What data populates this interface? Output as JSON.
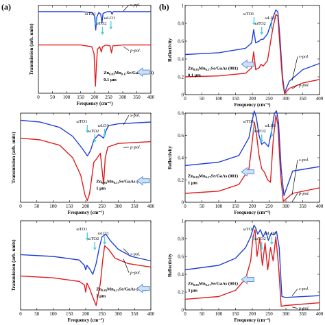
{
  "figure": {
    "panel_labels": [
      "(a)",
      "(b)"
    ],
    "colors": {
      "s_pol": "#1f3fd6",
      "p_pol": "#e01b1b",
      "arrow_cyan": "#4fd0e0",
      "block_arrow": "#5a8fd8"
    }
  },
  "chart_data": [
    {
      "id": "a1",
      "type": "line",
      "ylabel": "Transmission (arb. units)",
      "xlabel": "Frequency (cm⁻¹)",
      "xlim": [
        0,
        400
      ],
      "xticks": [
        0,
        50,
        100,
        150,
        200,
        250,
        300,
        350,
        400
      ],
      "legend": [
        "s-pol.",
        "p-pol."
      ],
      "annotations": {
        "o1": "ωTO1",
        "o2": "ωTO2",
        "o3": "ωLO1",
        "thickness": "0.1 μm",
        "sample": {
          "a": "Zn",
          "b": "0.83",
          "c": "Mn",
          "d": "0.17",
          "e": "Se/GaAs (001)"
        }
      },
      "series": [
        {
          "name": "s-pol.",
          "x": [
            0,
            150,
            190,
            200,
            204,
            208,
            215,
            222,
            226,
            230,
            245,
            258,
            262,
            266,
            300,
            400
          ],
          "y": [
            0.93,
            0.93,
            0.92,
            0.88,
            0.72,
            0.87,
            0.92,
            0.9,
            0.8,
            0.91,
            0.93,
            0.93,
            0.9,
            0.93,
            0.93,
            0.93
          ]
        },
        {
          "name": "p-pol.",
          "x": [
            0,
            150,
            190,
            198,
            203,
            206,
            210,
            218,
            224,
            228,
            240,
            255,
            260,
            265,
            300,
            400
          ],
          "y": [
            0.55,
            0.55,
            0.53,
            0.45,
            0.08,
            0.3,
            0.5,
            0.53,
            0.47,
            0.53,
            0.55,
            0.54,
            0.46,
            0.54,
            0.55,
            0.55
          ]
        }
      ]
    },
    {
      "id": "b1",
      "type": "line",
      "ylabel": "Reflectivity",
      "xlabel": "Frequency (cm⁻¹)",
      "xlim": [
        0,
        400
      ],
      "ylim": [
        0,
        1.0
      ],
      "xticks": [
        0,
        50,
        100,
        150,
        200,
        250,
        300,
        350,
        400
      ],
      "yticks": [
        0,
        0.2,
        0.4,
        0.6,
        0.8,
        1.0
      ],
      "legend": [
        "s-pol.",
        "p-pol."
      ],
      "annotations": {
        "o1": "ωTO1",
        "o2": "ωTO2",
        "o3": "ωLO1",
        "thickness": "0.1 μm",
        "sample": {
          "a": "Zn",
          "b": "0.83",
          "c": "Mn",
          "d": "0.17",
          "e": "Se/GaAs (001)"
        }
      },
      "series": [
        {
          "name": "s-pol.",
          "x": [
            0,
            100,
            180,
            198,
            204,
            210,
            220,
            226,
            232,
            245,
            260,
            270,
            276,
            282,
            290,
            296,
            310,
            350,
            400
          ],
          "y": [
            0.45,
            0.47,
            0.52,
            0.58,
            0.73,
            0.58,
            0.6,
            0.62,
            0.62,
            0.68,
            0.85,
            0.95,
            0.93,
            0.65,
            0.2,
            0.02,
            0.15,
            0.28,
            0.35
          ]
        },
        {
          "name": "p-pol.",
          "x": [
            0,
            100,
            180,
            198,
            204,
            210,
            220,
            226,
            232,
            245,
            260,
            270,
            276,
            282,
            290,
            296,
            310,
            350,
            400
          ],
          "y": [
            0.2,
            0.21,
            0.24,
            0.3,
            0.48,
            0.28,
            0.3,
            0.34,
            0.32,
            0.38,
            0.72,
            0.9,
            0.88,
            0.55,
            0.15,
            0.01,
            0.07,
            0.13,
            0.17
          ]
        }
      ]
    },
    {
      "id": "a2",
      "type": "line",
      "ylabel": "Transmission (arb. units)",
      "xlabel": "Frequency (cm⁻¹)",
      "xlim": [
        0,
        400
      ],
      "xticks": [
        0,
        50,
        100,
        150,
        200,
        250,
        300,
        350,
        400
      ],
      "legend": [
        "p-pol.",
        "s-pol."
      ],
      "annotations": {
        "o1": "ωTO1",
        "o2": "ωTO2",
        "o3": "ωLO1",
        "thickness": "1 μm",
        "sample": {
          "a": "Zn",
          "b": "0.83",
          "c": "Mn",
          "d": "0.17",
          "e": "Se/GaAs (001)"
        }
      },
      "series": [
        {
          "name": "s-pol.",
          "x": [
            0,
            60,
            120,
            160,
            190,
            205,
            215,
            225,
            230,
            240,
            255,
            262,
            270,
            300,
            400
          ],
          "y": [
            0.92,
            0.9,
            0.84,
            0.74,
            0.6,
            0.52,
            0.58,
            0.7,
            0.72,
            0.76,
            0.72,
            0.8,
            0.86,
            0.88,
            0.9
          ]
        },
        {
          "name": "p-pol.",
          "x": [
            0,
            60,
            120,
            160,
            185,
            198,
            205,
            212,
            225,
            232,
            245,
            255,
            260,
            268,
            300,
            400
          ],
          "y": [
            0.72,
            0.7,
            0.64,
            0.5,
            0.3,
            0.08,
            0.02,
            0.1,
            0.45,
            0.48,
            0.55,
            0.2,
            0.5,
            0.62,
            0.66,
            0.68
          ]
        }
      ]
    },
    {
      "id": "b2",
      "type": "line",
      "ylabel": "Reflectivity",
      "xlabel": "Frequency (cm⁻¹)",
      "xlim": [
        0,
        400
      ],
      "ylim": [
        0,
        0.8
      ],
      "xticks": [
        0,
        50,
        100,
        150,
        200,
        250,
        300,
        350,
        400
      ],
      "yticks": [
        0,
        0.2,
        0.4,
        0.6,
        0.8
      ],
      "legend": [
        "s-pol.",
        "p-pol."
      ],
      "annotations": {
        "o1": "ωTO1",
        "o2": "ωTO2",
        "o3": "ωLO1",
        "thickness": "1 μm",
        "sample": {
          "a": "Zn",
          "b": "0.83",
          "c": "Mn",
          "d": "0.17",
          "e": "Se/GaAs (001)"
        }
      },
      "series": [
        {
          "name": "s-pol.",
          "x": [
            0,
            100,
            160,
            190,
            200,
            206,
            212,
            220,
            228,
            236,
            248,
            258,
            266,
            272,
            278,
            286,
            294,
            320,
            400
          ],
          "y": [
            0.33,
            0.36,
            0.42,
            0.58,
            0.74,
            0.82,
            0.76,
            0.6,
            0.52,
            0.54,
            0.5,
            0.65,
            0.8,
            0.82,
            0.72,
            0.3,
            0.06,
            0.28,
            0.32
          ]
        },
        {
          "name": "p-pol.",
          "x": [
            0,
            100,
            160,
            190,
            200,
            206,
            212,
            220,
            228,
            236,
            246,
            254,
            262,
            270,
            276,
            284,
            292,
            320,
            400
          ],
          "y": [
            0.08,
            0.1,
            0.16,
            0.3,
            0.55,
            0.72,
            0.62,
            0.42,
            0.3,
            0.27,
            0.2,
            0.18,
            0.55,
            0.78,
            0.7,
            0.25,
            0.01,
            0.08,
            0.13
          ]
        }
      ]
    },
    {
      "id": "a3",
      "type": "line",
      "ylabel": "Transmission (arb. units)",
      "xlabel": "Frequency (cm⁻¹)",
      "xlim": [
        0,
        400
      ],
      "xticks": [
        0,
        50,
        100,
        150,
        200,
        250,
        300,
        350,
        400
      ],
      "legend": [
        "p-pol.",
        "s-pol."
      ],
      "annotations": {
        "o1": "ωTO1",
        "o2": "ωTO2",
        "o3": "ωLO1",
        "thickness": "3 μm",
        "sample": {
          "a": "Zn",
          "b": "0.83",
          "c": "Mn",
          "d": "0.17",
          "e": "Se/GaAs (001)"
        }
      },
      "series": [
        {
          "name": "s-pol.",
          "x": [
            0,
            100,
            180,
            196,
            200,
            204,
            212,
            222,
            232,
            242,
            250,
            262,
            275,
            300,
            340,
            400
          ],
          "y": [
            0.62,
            0.6,
            0.56,
            0.5,
            0.45,
            0.5,
            0.46,
            0.4,
            0.52,
            0.7,
            0.82,
            0.85,
            0.78,
            0.68,
            0.6,
            0.55
          ]
        },
        {
          "name": "p-pol.",
          "x": [
            0,
            100,
            180,
            196,
            200,
            204,
            212,
            222,
            232,
            245,
            252,
            258,
            270,
            290,
            330,
            400
          ],
          "y": [
            0.38,
            0.36,
            0.32,
            0.28,
            0.2,
            0.3,
            0.24,
            0.14,
            0.05,
            0.3,
            0.55,
            0.72,
            0.68,
            0.58,
            0.52,
            0.48
          ]
        }
      ]
    },
    {
      "id": "b3",
      "type": "line",
      "ylabel": "Reflectivity",
      "xlabel": "Frequency (cm⁻¹)",
      "xlim": [
        0,
        400
      ],
      "ylim": [
        0,
        1.0
      ],
      "xticks": [
        0,
        50,
        100,
        150,
        200,
        250,
        300,
        350,
        400
      ],
      "yticks": [
        0,
        0.2,
        0.4,
        0.6,
        0.8,
        1.0
      ],
      "legend": [
        "s-pol.",
        "p-pol."
      ],
      "annotations": {
        "o1": "ωTO1",
        "o2": "ωTO2",
        "o3": "ωLO1",
        "thickness": "3 μm",
        "sample": {
          "a": "Zn",
          "b": "0.83",
          "c": "Mn",
          "d": "0.17",
          "e": "Se/GaAs (001)"
        }
      },
      "series": [
        {
          "name": "s-pol.",
          "x": [
            0,
            100,
            150,
            180,
            195,
            205,
            210,
            216,
            224,
            232,
            240,
            248,
            256,
            264,
            272,
            280,
            288,
            300,
            400
          ],
          "y": [
            0.45,
            0.5,
            0.58,
            0.7,
            0.82,
            0.95,
            0.92,
            0.85,
            0.9,
            0.82,
            0.88,
            0.78,
            0.86,
            0.84,
            0.88,
            0.7,
            0.15,
            0.14,
            0.16
          ]
        },
        {
          "name": "p-pol.",
          "x": [
            0,
            100,
            150,
            180,
            195,
            202,
            208,
            214,
            222,
            230,
            238,
            246,
            254,
            262,
            270,
            278,
            286,
            300,
            400
          ],
          "y": [
            0.12,
            0.15,
            0.22,
            0.35,
            0.55,
            0.82,
            0.9,
            0.6,
            0.8,
            0.5,
            0.75,
            0.45,
            0.7,
            0.55,
            0.82,
            0.5,
            0.04,
            0.05,
            0.08
          ]
        }
      ]
    }
  ]
}
